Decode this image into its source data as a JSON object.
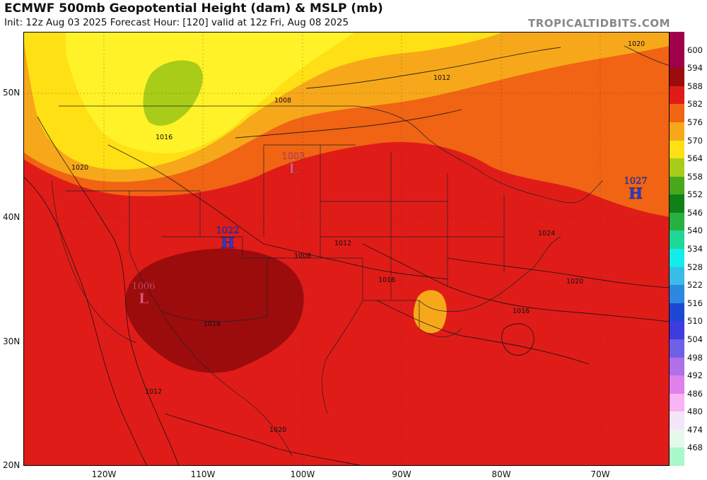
{
  "header": {
    "title": "ECMWF 500mb Geopotential Height (dam) & MSLP (mb)",
    "subtitle": "Init: 12z Aug 03 2025   Forecast Hour: [120]   valid at 12z Fri, Aug 08 2025",
    "brand": "TROPICALTIDBITS.COM"
  },
  "axes": {
    "lat_labels": [
      "50N",
      "40N",
      "30N",
      "20N"
    ],
    "lon_labels": [
      "120W",
      "110W",
      "100W",
      "90W",
      "80W",
      "70W"
    ]
  },
  "colorbar": {
    "labels": [
      "600",
      "594",
      "588",
      "582",
      "576",
      "570",
      "564",
      "558",
      "552",
      "546",
      "540",
      "534",
      "528",
      "522",
      "516",
      "510",
      "504",
      "498",
      "492",
      "486",
      "480",
      "474",
      "468"
    ],
    "colors": [
      "#a0004a",
      "#9c0c0c",
      "#e01c18",
      "#f06414",
      "#f7a81a",
      "#ffe014",
      "#a8cc18",
      "#48a81c",
      "#118018",
      "#28b040",
      "#1ed898",
      "#14ecec",
      "#38bce8",
      "#2c88e0",
      "#1c48d4",
      "#3c3ce0",
      "#7060e8",
      "#b070e8",
      "#e080ec",
      "#f8b4f4",
      "#f4e6f8",
      "#e6f8ec",
      "#a8f8cc"
    ]
  },
  "pressure_centers": [
    {
      "type": "L",
      "value": "1003",
      "color": "#e05870"
    },
    {
      "type": "L",
      "value": "1006",
      "color": "#e05870"
    },
    {
      "type": "H",
      "value": "1022",
      "color": "#2040d8"
    },
    {
      "type": "H",
      "value": "1027",
      "color": "#2040d8"
    }
  ],
  "isobar_labels": [
    "1020",
    "1012",
    "1008",
    "1016",
    "1020",
    "1012",
    "1008",
    "1016",
    "1020",
    "1016",
    "1024",
    "1012",
    "1020",
    "1016"
  ],
  "map_colors": {
    "h594": "#e01c18",
    "h600": "#9c0c0c",
    "h588": "#f06414",
    "h582": "#f7a81a",
    "h576": "#ffe014",
    "h570": "#fff228",
    "h564": "#a8cc18"
  }
}
